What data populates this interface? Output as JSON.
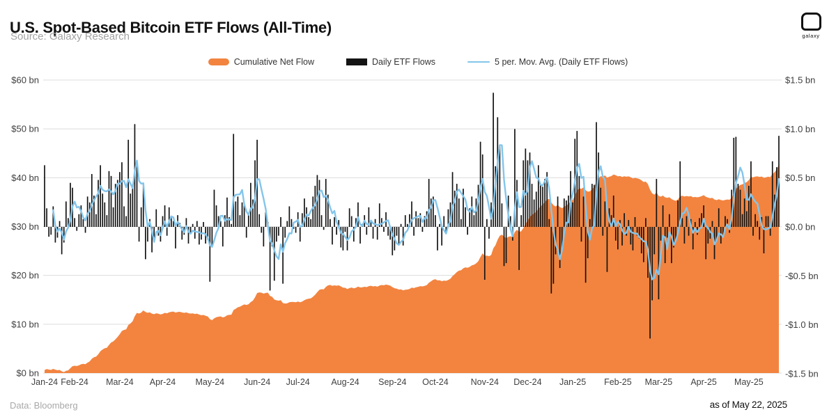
{
  "header": {
    "title": "U.S. Spot-Based Bitcoin ETF Flows (All-Time)",
    "subtitle": "Source: Galaxy Research",
    "logo_text": "galaxy"
  },
  "legend": [
    {
      "label": "Cumulative Net Flow",
      "swatch": "area",
      "color": "#F28440"
    },
    {
      "label": "Daily ETF Flows",
      "swatch": "bar",
      "color": "#141414"
    },
    {
      "label": "5 per. Mov. Avg. (Daily ETF Flows)",
      "swatch": "line",
      "color": "#83C5EB"
    }
  ],
  "footer": {
    "data_source": "Data: Bloomberg",
    "as_of": "as of May 22, 2025"
  },
  "colors": {
    "area_orange": "#F28440",
    "bar_black": "#141414",
    "ma_blue": "#83C5EB",
    "gridline": "#dcdcdc",
    "tick_text": "#3f3f3f"
  },
  "chart_data": {
    "type": "combo",
    "title": "U.S. Spot-Based Bitcoin ETF Flows (All-Time)",
    "series": [
      {
        "name": "Cumulative Net Flow",
        "type": "area",
        "axis": "left",
        "color": "#F28440",
        "source": "running_sum(daily_flows_bn)"
      },
      {
        "name": "Daily ETF Flows",
        "type": "bar",
        "axis": "right",
        "color": "#141414",
        "source": "daily_flows_bn"
      },
      {
        "name": "5 per. Mov. Avg. (Daily ETF Flows)",
        "type": "line",
        "axis": "right",
        "color": "#83C5EB",
        "source": "moving_average(daily_flows_bn, 5)"
      }
    ],
    "left_axis": {
      "range": [
        0,
        60
      ],
      "ticks": [
        {
          "label": "$60 bn",
          "value": 60
        },
        {
          "label": "$50 bn",
          "value": 50
        },
        {
          "label": "$40 bn",
          "value": 40
        },
        {
          "label": "$30 bn",
          "value": 30
        },
        {
          "label": "$20 bn",
          "value": 20
        },
        {
          "label": "$10 bn",
          "value": 10
        },
        {
          "label": "$0 bn",
          "value": 0
        }
      ]
    },
    "right_axis": {
      "range": [
        -1.5,
        1.5
      ],
      "ticks": [
        {
          "label": "$1.5 bn",
          "value": 1.5
        },
        {
          "label": "$1.0 bn",
          "value": 1.0
        },
        {
          "label": "$0.5 bn",
          "value": 0.5
        },
        {
          "label": "$0.0 bn",
          "value": 0.0
        },
        {
          "label": "-$0.5 bn",
          "value": -0.5
        },
        {
          "label": "-$1.0 bn",
          "value": -1.0
        },
        {
          "label": "-$1.5 bn",
          "value": -1.5
        }
      ]
    },
    "months": [
      {
        "label": "Jan-24",
        "days": 14
      },
      {
        "label": "Feb-24",
        "days": 21
      },
      {
        "label": "Mar-24",
        "days": 20
      },
      {
        "label": "Apr-24",
        "days": 22
      },
      {
        "label": "May-24",
        "days": 22
      },
      {
        "label": "Jun-24",
        "days": 19
      },
      {
        "label": "Jul-24",
        "days": 22
      },
      {
        "label": "Aug-24",
        "days": 22
      },
      {
        "label": "Sep-24",
        "days": 20
      },
      {
        "label": "Oct-24",
        "days": 23
      },
      {
        "label": "Nov-24",
        "days": 20
      },
      {
        "label": "Dec-24",
        "days": 21
      },
      {
        "label": "Jan-25",
        "days": 21
      },
      {
        "label": "Feb-25",
        "days": 19
      },
      {
        "label": "Mar-25",
        "days": 21
      },
      {
        "label": "Apr-25",
        "days": 21
      },
      {
        "label": "May-25",
        "days": 15
      }
    ],
    "cumulative_month_end_bn": [
      1.4,
      7.4,
      12.0,
      11.6,
      15.5,
      14.5,
      17.5,
      17.9,
      19.1,
      24.5,
      30.5,
      35.2,
      40.5,
      37.0,
      36.2,
      39.1,
      42.7
    ],
    "daily_flows_bn": [
      0.63,
      0.19,
      -0.1,
      -0.08,
      0.21,
      -0.16,
      -0.11,
      0.06,
      -0.28,
      -0.16,
      0.26,
      0.09,
      0.45,
      0.4,
      0.09,
      -0.04,
      0.13,
      0.22,
      0.08,
      -0.06,
      0.31,
      0.25,
      0.54,
      0.32,
      0.13,
      0.48,
      0.63,
      0.34,
      0.25,
      0.12,
      0.57,
      0.52,
      0.2,
      0.44,
      0.48,
      0.56,
      0.66,
      0.21,
      0.11,
      0.89,
      0.34,
      0.43,
      1.05,
      0.68,
      -0.15,
      0.2,
      0.45,
      -0.33,
      -0.15,
      0.08,
      -0.26,
      -0.11,
      0.18,
      -0.09,
      -0.15,
      0.11,
      0.22,
      -0.09,
      0.2,
      0.1,
      0.06,
      -0.22,
      0.12,
      0.04,
      -0.13,
      -0.08,
      0.09,
      -0.17,
      -0.06,
      0.03,
      -0.12,
      0.06,
      -0.18,
      -0.13,
      0.05,
      -0.17,
      -0.13,
      -0.56,
      -0.21,
      0.38,
      0.22,
      0.11,
      0.06,
      -0.2,
      0.12,
      0.3,
      0.1,
      0.03,
      0.95,
      0.26,
      0.31,
      0.12,
      0.25,
      0.22,
      -0.11,
      0.14,
      0.45,
      0.28,
      0.68,
      0.89,
      0.13,
      -0.06,
      -0.2,
      0.15,
      0.05,
      -0.65,
      -0.2,
      -0.55,
      -0.15,
      -0.09,
      0.1,
      -0.58,
      -0.11,
      0.06,
      0.21,
      0.08,
      -0.02,
      -0.06,
      0.15,
      -0.15,
      0.14,
      0.29,
      0.2,
      0.1,
      0.08,
      0.31,
      0.42,
      0.53,
      0.48,
      0.12,
      -0.03,
      0.49,
      0.33,
      0.08,
      -0.18,
      0.1,
      -0.08,
      0.07,
      -0.21,
      -0.24,
      -0.05,
      -0.24,
      0.19,
      0.11,
      -0.15,
      0.09,
      0.25,
      -0.17,
      0.03,
      0.12,
      -0.08,
      0.2,
      0.06,
      -0.12,
      0.08,
      -0.13,
      0.24,
      0.09,
      -0.05,
      0.15,
      -0.09,
      -0.13,
      -0.29,
      -0.24,
      -0.09,
      -0.17,
      0.03,
      -0.19,
      0.12,
      0.03,
      0.13,
      0.26,
      -0.09,
      0.16,
      0.09,
      0.14,
      -0.05,
      0.11,
      0.16,
      0.49,
      0.29,
      0.31,
      0.12,
      -0.24,
      0.03,
      -0.19,
      0.11,
      -0.05,
      0.18,
      0.25,
      0.56,
      0.37,
      0.44,
      0.29,
      0.08,
      0.39,
      0.2,
      -0.08,
      0.19,
      0.31,
      0.12,
      0.29,
      0.43,
      0.87,
      0.74,
      -0.54,
      0.08,
      -0.12,
      0.25,
      1.37,
      0.62,
      1.12,
      0.82,
      0.24,
      -0.4,
      -0.37,
      0.32,
      0.11,
      -0.14,
      1.0,
      0.48,
      -0.44,
      0.12,
      0.68,
      0.8,
      0.68,
      0.76,
      0.44,
      0.28,
      0.36,
      0.63,
      0.44,
      0.41,
      0.49,
      0.56,
      0.08,
      -0.68,
      -0.58,
      -0.28,
      0.31,
      -0.42,
      -0.23,
      0.29,
      0.27,
      0.32,
      0.57,
      0.25,
      0.9,
      0.98,
      0.52,
      -0.15,
      0.31,
      -0.57,
      -0.32,
      0.08,
      0.44,
      0.43,
      1.07,
      0.76,
      0.4,
      -0.09,
      0.26,
      -0.46,
      0.19,
      0.12,
      0.32,
      -0.14,
      -0.23,
      0.07,
      -0.19,
      0.14,
      -0.09,
      0.07,
      -0.18,
      -0.24,
      0.1,
      -0.09,
      -0.12,
      -0.27,
      -0.36,
      0.09,
      -0.52,
      -1.14,
      -0.75,
      -0.28,
      0.49,
      -0.74,
      -0.14,
      0.22,
      -0.37,
      -0.11,
      0.13,
      -0.37,
      -0.21,
      -0.14,
      0.27,
      0.67,
      0.09,
      -0.17,
      0.11,
      -0.09,
      0.08,
      -0.23,
      0.05,
      -0.08,
      0.09,
      0.14,
      0.22,
      -0.33,
      -0.17,
      -0.12,
      0.06,
      -0.33,
      -0.13,
      0.19,
      -0.17,
      -0.08,
      0.11,
      0.08,
      -0.06,
      0.38,
      0.91,
      0.92,
      0.44,
      0.38,
      0.13,
      0.29,
      0.16,
      0.42,
      0.67,
      -0.09,
      0.13,
      0.06,
      -0.13,
      0.1,
      -0.27,
      0.11,
      0.11,
      -0.09,
      0.67,
      0.33,
      0.61,
      0.93
    ]
  }
}
